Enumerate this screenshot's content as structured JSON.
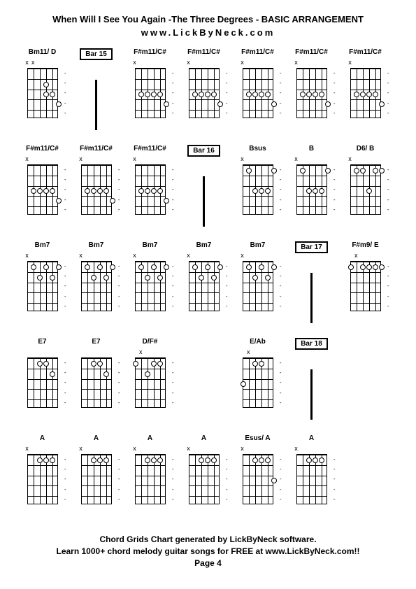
{
  "header": {
    "title": "When Will I See You Again -The Three Degrees  - BASIC ARRANGEMENT",
    "website": "www.LickByNeck.com"
  },
  "footer": {
    "line1": "Chord Grids Chart generated by LickByNeck software.",
    "line2": "Learn 1000+ chord melody guitar songs for FREE at www.LickByNeck.com!!",
    "page": "Page 4"
  },
  "layout": {
    "cols": 7,
    "rows": 5,
    "diagram_width": 52,
    "diagram_height": 86,
    "fretboard_width": 44,
    "fretboard_height": 72,
    "num_strings": 6,
    "num_frets": 5,
    "dot_size": 8,
    "background_color": "#ffffff",
    "text_color": "#000000",
    "title_fontsize": 13,
    "label_fontsize": 10,
    "footer_fontsize": 12
  },
  "cells": [
    {
      "type": "chord",
      "label": "Bm11/ D",
      "top": [
        "x",
        "x",
        "",
        "",
        "",
        ""
      ],
      "dots": [
        [
          2,
          3
        ],
        [
          3,
          3
        ],
        [
          3,
          4
        ],
        [
          4,
          5
        ]
      ],
      "dashes": true
    },
    {
      "type": "bar",
      "label": "Bar 15"
    },
    {
      "type": "chord",
      "label": "F#m11/C#",
      "top": [
        "x",
        "",
        "",
        "",
        "",
        ""
      ],
      "dots": [
        [
          3,
          1
        ],
        [
          3,
          2
        ],
        [
          3,
          3
        ],
        [
          3,
          4
        ],
        [
          4,
          5
        ]
      ],
      "dashes": true
    },
    {
      "type": "chord",
      "label": "F#m11/C#",
      "top": [
        "x",
        "",
        "",
        "",
        "",
        ""
      ],
      "dots": [
        [
          3,
          1
        ],
        [
          3,
          2
        ],
        [
          3,
          3
        ],
        [
          3,
          4
        ],
        [
          4,
          5
        ]
      ],
      "dashes": true
    },
    {
      "type": "chord",
      "label": "F#m11/C#",
      "top": [
        "x",
        "",
        "",
        "",
        "",
        ""
      ],
      "dots": [
        [
          3,
          1
        ],
        [
          3,
          2
        ],
        [
          3,
          3
        ],
        [
          3,
          4
        ],
        [
          4,
          5
        ]
      ],
      "dashes": true
    },
    {
      "type": "chord",
      "label": "F#m11/C#",
      "top": [
        "x",
        "",
        "",
        "",
        "",
        ""
      ],
      "dots": [
        [
          3,
          1
        ],
        [
          3,
          2
        ],
        [
          3,
          3
        ],
        [
          3,
          4
        ],
        [
          4,
          5
        ]
      ],
      "dashes": true
    },
    {
      "type": "chord",
      "label": "F#m11/C#",
      "top": [
        "x",
        "",
        "",
        "",
        "",
        ""
      ],
      "dots": [
        [
          3,
          1
        ],
        [
          3,
          2
        ],
        [
          3,
          3
        ],
        [
          3,
          4
        ],
        [
          4,
          5
        ]
      ],
      "dashes": true
    },
    {
      "type": "chord",
      "label": "F#m11/C#",
      "top": [
        "x",
        "",
        "",
        "",
        "",
        ""
      ],
      "dots": [
        [
          3,
          1
        ],
        [
          3,
          2
        ],
        [
          3,
          3
        ],
        [
          3,
          4
        ],
        [
          4,
          5
        ]
      ],
      "dashes": true
    },
    {
      "type": "chord",
      "label": "F#m11/C#",
      "top": [
        "x",
        "",
        "",
        "",
        "",
        ""
      ],
      "dots": [
        [
          3,
          1
        ],
        [
          3,
          2
        ],
        [
          3,
          3
        ],
        [
          3,
          4
        ],
        [
          4,
          5
        ]
      ],
      "dashes": true
    },
    {
      "type": "chord",
      "label": "F#m11/C#",
      "top": [
        "x",
        "",
        "",
        "",
        "",
        ""
      ],
      "dots": [
        [
          3,
          1
        ],
        [
          3,
          2
        ],
        [
          3,
          3
        ],
        [
          3,
          4
        ],
        [
          4,
          5
        ]
      ],
      "dashes": true
    },
    {
      "type": "bar",
      "label": "Bar 16"
    },
    {
      "type": "chord",
      "label": "Bsus",
      "top": [
        "x",
        "",
        "",
        "",
        "",
        ""
      ],
      "dots": [
        [
          1,
          1
        ],
        [
          3,
          2
        ],
        [
          3,
          3
        ],
        [
          3,
          4
        ],
        [
          1,
          5
        ]
      ],
      "dashes": true
    },
    {
      "type": "chord",
      "label": "B",
      "top": [
        "x",
        "",
        "",
        "",
        "",
        ""
      ],
      "dots": [
        [
          1,
          1
        ],
        [
          3,
          2
        ],
        [
          3,
          3
        ],
        [
          3,
          4
        ],
        [
          1,
          5
        ]
      ],
      "dashes": true
    },
    {
      "type": "chord",
      "label": "D6/ B",
      "top": [
        "x",
        "",
        "",
        "",
        "",
        ""
      ],
      "dots": [
        [
          1,
          1
        ],
        [
          1,
          2
        ],
        [
          3,
          3
        ],
        [
          1,
          4
        ],
        [
          1,
          5
        ]
      ],
      "dashes": true
    },
    {
      "type": "chord",
      "label": "Bm7",
      "top": [
        "x",
        "",
        "",
        "",
        "",
        ""
      ],
      "dots": [
        [
          1,
          1
        ],
        [
          2,
          2
        ],
        [
          1,
          3
        ],
        [
          2,
          4
        ],
        [
          1,
          5
        ]
      ],
      "dashes": true
    },
    {
      "type": "chord",
      "label": "Bm7",
      "top": [
        "x",
        "",
        "",
        "",
        "",
        ""
      ],
      "dots": [
        [
          1,
          1
        ],
        [
          2,
          2
        ],
        [
          1,
          3
        ],
        [
          2,
          4
        ],
        [
          1,
          5
        ]
      ],
      "dashes": true
    },
    {
      "type": "chord",
      "label": "Bm7",
      "top": [
        "x",
        "",
        "",
        "",
        "",
        ""
      ],
      "dots": [
        [
          1,
          1
        ],
        [
          2,
          2
        ],
        [
          1,
          3
        ],
        [
          2,
          4
        ],
        [
          1,
          5
        ]
      ],
      "dashes": true
    },
    {
      "type": "chord",
      "label": "Bm7",
      "top": [
        "x",
        "",
        "",
        "",
        "",
        ""
      ],
      "dots": [
        [
          1,
          1
        ],
        [
          2,
          2
        ],
        [
          1,
          3
        ],
        [
          2,
          4
        ],
        [
          1,
          5
        ]
      ],
      "dashes": true
    },
    {
      "type": "chord",
      "label": "Bm7",
      "top": [
        "x",
        "",
        "",
        "",
        "",
        ""
      ],
      "dots": [
        [
          1,
          1
        ],
        [
          2,
          2
        ],
        [
          1,
          3
        ],
        [
          2,
          4
        ],
        [
          1,
          5
        ]
      ],
      "dashes": true
    },
    {
      "type": "bar",
      "label": "Bar 17"
    },
    {
      "type": "chord",
      "label": "F#m9/ E",
      "top": [
        "",
        "x",
        "",
        "",
        "",
        ""
      ],
      "dots": [
        [
          1,
          0
        ],
        [
          1,
          2
        ],
        [
          1,
          3
        ],
        [
          1,
          4
        ],
        [
          1,
          5
        ]
      ],
      "dashes": true
    },
    {
      "type": "chord",
      "label": "E7",
      "top": [
        "",
        "",
        "",
        "",
        "",
        ""
      ],
      "dots": [
        [
          1,
          2
        ],
        [
          1,
          3
        ],
        [
          2,
          4
        ]
      ],
      "dashes": true
    },
    {
      "type": "chord",
      "label": "E7",
      "top": [
        "",
        "",
        "",
        "",
        "",
        ""
      ],
      "dots": [
        [
          1,
          2
        ],
        [
          1,
          3
        ],
        [
          2,
          4
        ]
      ],
      "dashes": true
    },
    {
      "type": "chord",
      "label": "D/F#",
      "top": [
        "",
        "x",
        "",
        "",
        "",
        ""
      ],
      "dots": [
        [
          1,
          0
        ],
        [
          2,
          2
        ],
        [
          1,
          3
        ],
        [
          1,
          4
        ]
      ],
      "dashes": true
    },
    {
      "type": "empty"
    },
    {
      "type": "chord",
      "label": "E/Ab",
      "top": [
        "",
        "x",
        "",
        "",
        "",
        ""
      ],
      "dots": [
        [
          3,
          0
        ],
        [
          1,
          2
        ],
        [
          1,
          3
        ]
      ],
      "dashes": true
    },
    {
      "type": "bar",
      "label": "Bar 18"
    },
    {
      "type": "empty"
    },
    {
      "type": "chord",
      "label": "A",
      "top": [
        "x",
        "",
        "",
        "",
        "",
        ""
      ],
      "dots": [
        [
          1,
          2
        ],
        [
          1,
          3
        ],
        [
          1,
          4
        ]
      ],
      "dashes": true
    },
    {
      "type": "chord",
      "label": "A",
      "top": [
        "x",
        "",
        "",
        "",
        "",
        ""
      ],
      "dots": [
        [
          1,
          2
        ],
        [
          1,
          3
        ],
        [
          1,
          4
        ]
      ],
      "dashes": true
    },
    {
      "type": "chord",
      "label": "A",
      "top": [
        "x",
        "",
        "",
        "",
        "",
        ""
      ],
      "dots": [
        [
          1,
          2
        ],
        [
          1,
          3
        ],
        [
          1,
          4
        ]
      ],
      "dashes": true
    },
    {
      "type": "chord",
      "label": "A",
      "top": [
        "x",
        "",
        "",
        "",
        "",
        ""
      ],
      "dots": [
        [
          1,
          2
        ],
        [
          1,
          3
        ],
        [
          1,
          4
        ]
      ],
      "dashes": true
    },
    {
      "type": "chord",
      "label": "Esus/ A",
      "top": [
        "x",
        "",
        "",
        "",
        "",
        ""
      ],
      "dots": [
        [
          1,
          2
        ],
        [
          1,
          3
        ],
        [
          1,
          4
        ],
        [
          3,
          5
        ]
      ],
      "dashes": true
    },
    {
      "type": "chord",
      "label": "A",
      "top": [
        "x",
        "",
        "",
        "",
        "",
        ""
      ],
      "dots": [
        [
          1,
          2
        ],
        [
          1,
          3
        ],
        [
          1,
          4
        ]
      ],
      "dashes": true
    },
    {
      "type": "empty"
    }
  ]
}
